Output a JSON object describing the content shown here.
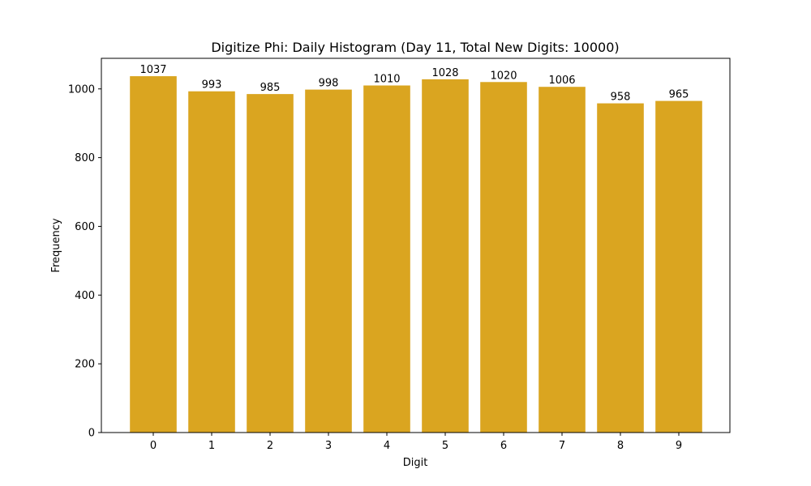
{
  "chart_data": {
    "type": "bar",
    "title": "Digitize Phi: Daily Histogram (Day 11, Total New Digits: 10000)",
    "xlabel": "Digit",
    "ylabel": "Frequency",
    "categories": [
      "0",
      "1",
      "2",
      "3",
      "4",
      "5",
      "6",
      "7",
      "8",
      "9"
    ],
    "values": [
      1037,
      993,
      985,
      998,
      1010,
      1028,
      1020,
      1006,
      958,
      965
    ],
    "data_labels": [
      "1037",
      "993",
      "985",
      "998",
      "1010",
      "1028",
      "1020",
      "1006",
      "958",
      "965"
    ],
    "yticks": [
      0,
      200,
      400,
      600,
      800,
      1000
    ],
    "ylim": [
      0,
      1089
    ],
    "bar_color": "#daa520",
    "grid": false,
    "legend": null
  }
}
